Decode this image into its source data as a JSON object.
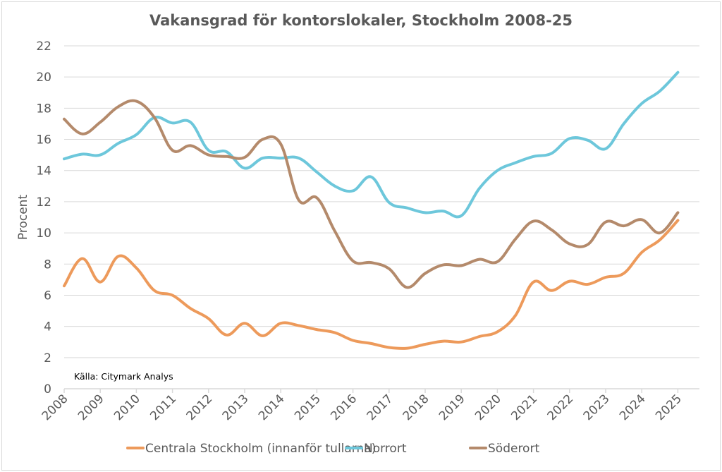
{
  "chart_data": {
    "type": "line",
    "title": "Vakansgrad för kontorslokaler, Stockholm 2008-25",
    "xlabel": "",
    "ylabel": "Procent",
    "ylim": [
      0,
      22
    ],
    "yticks": [
      0,
      2,
      4,
      6,
      8,
      10,
      12,
      14,
      16,
      18,
      20,
      22
    ],
    "grid": true,
    "smoothed": true,
    "x_tick_labels": [
      "2008",
      "2009",
      "2010",
      "2011",
      "2012",
      "2013",
      "2014",
      "2015",
      "2016",
      "2017",
      "2018",
      "2019",
      "2020",
      "2021",
      "2022",
      "2023",
      "2024",
      "2025"
    ],
    "x": [
      2008.0,
      2008.5,
      2009.0,
      2009.5,
      2010.0,
      2010.5,
      2011.0,
      2011.5,
      2012.0,
      2012.5,
      2013.0,
      2013.5,
      2014.0,
      2014.5,
      2015.0,
      2015.5,
      2016.0,
      2016.5,
      2017.0,
      2017.5,
      2018.0,
      2018.5,
      2019.0,
      2019.5,
      2020.0,
      2020.5,
      2021.0,
      2021.5,
      2022.0,
      2022.5,
      2023.0,
      2023.5,
      2024.0,
      2024.5,
      2025.0
    ],
    "series": [
      {
        "name": "Centrala Stockholm (innanför tullarna)",
        "color": "#ED9A5B",
        "values": [
          6.6,
          8.35,
          6.85,
          8.5,
          7.75,
          6.3,
          6.0,
          5.15,
          4.5,
          3.45,
          4.2,
          3.4,
          4.2,
          4.05,
          3.8,
          3.6,
          3.1,
          2.9,
          2.65,
          2.6,
          2.85,
          3.05,
          3.0,
          3.35,
          3.65,
          4.7,
          6.85,
          6.3,
          6.9,
          6.7,
          7.15,
          7.4,
          8.75,
          9.55,
          10.8
        ]
      },
      {
        "name": "Norrort",
        "color": "#6DC7DB",
        "values": [
          14.75,
          15.05,
          15.0,
          15.75,
          16.3,
          17.4,
          17.05,
          17.1,
          15.3,
          15.2,
          14.15,
          14.8,
          14.8,
          14.8,
          13.9,
          13.0,
          12.7,
          13.6,
          11.95,
          11.6,
          11.3,
          11.4,
          11.1,
          12.85,
          14.0,
          14.5,
          14.9,
          15.1,
          16.05,
          15.95,
          15.4,
          17.0,
          18.3,
          19.1,
          20.3
        ]
      },
      {
        "name": "Söderort",
        "color": "#B48A6B",
        "values": [
          17.3,
          16.35,
          17.1,
          18.1,
          18.45,
          17.4,
          15.3,
          15.6,
          15.0,
          14.9,
          14.85,
          16.0,
          15.7,
          12.1,
          12.25,
          10.1,
          8.2,
          8.1,
          7.7,
          6.5,
          7.4,
          7.95,
          7.9,
          8.3,
          8.15,
          9.6,
          10.75,
          10.2,
          9.3,
          9.25,
          10.7,
          10.45,
          10.85,
          10.0,
          11.3
        ]
      }
    ],
    "annotations": [
      "Källa: Citymark Analys"
    ],
    "legend": "bottom"
  }
}
